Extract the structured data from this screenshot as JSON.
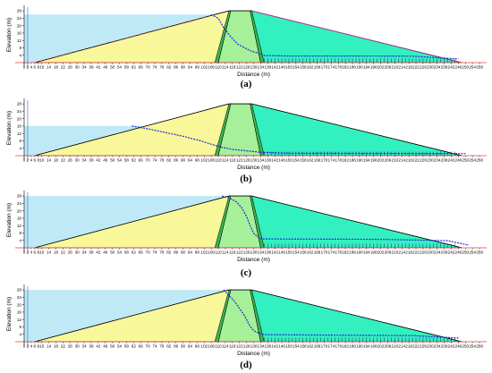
{
  "panels": [
    {
      "id": "a",
      "caption": "(a)",
      "water_level": 26,
      "phreatic": "a"
    },
    {
      "id": "b",
      "caption": "(b)",
      "water_level": 16,
      "phreatic": "b"
    },
    {
      "id": "c",
      "caption": "(c)",
      "water_level": 28,
      "phreatic": "c"
    },
    {
      "id": "d",
      "caption": "(d)",
      "water_level": 28,
      "phreatic": "d"
    }
  ],
  "axes": {
    "xlabel": "Distance (m)",
    "ylabel": "Elevation (m)",
    "xticks": [
      0,
      2,
      4,
      6,
      8,
      10,
      14,
      18,
      22,
      26,
      30,
      34,
      38,
      42,
      46,
      50,
      54,
      58,
      62,
      66,
      70,
      74,
      78,
      82,
      86,
      90,
      94,
      98,
      102,
      106,
      110,
      114,
      118,
      122,
      126,
      130,
      134,
      138,
      142,
      146,
      150,
      154,
      158,
      162,
      166,
      170,
      174,
      178,
      182,
      186,
      190,
      194,
      198,
      202,
      206,
      210,
      214,
      218,
      222,
      226,
      230,
      234,
      238,
      242,
      246,
      250,
      254,
      258
    ],
    "yticks": [
      4,
      8,
      12,
      16,
      20,
      24,
      28
    ],
    "xlim": [
      0,
      260
    ],
    "ylim": [
      0,
      30
    ]
  },
  "dam": {
    "upstream_toe": 6,
    "core_left_base": 108,
    "core_left_top": 116,
    "crest_left": 117,
    "crest_right": 128,
    "core_right_top": 129,
    "core_right_base": 136,
    "downstream_toe": 248,
    "height": 28
  },
  "colors": {
    "reservoir": "#bfe9f7",
    "shell_up": "#f8f89a",
    "core": "#a6f09a",
    "filter": "#38b84e",
    "shell_down": "#33f0c0",
    "phreatic": "#1f2bd6",
    "baseline": "#e04040",
    "crest_mark": "#e04040"
  }
}
